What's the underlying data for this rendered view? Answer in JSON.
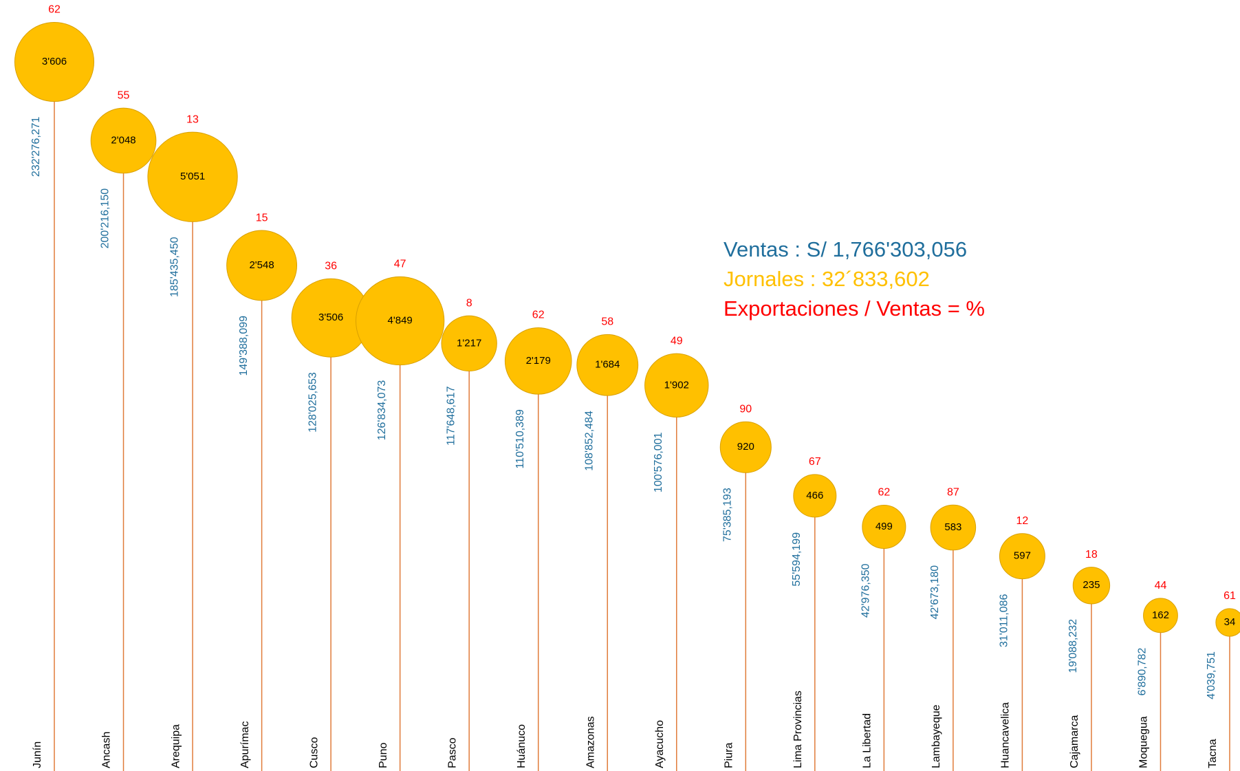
{
  "chart_data": {
    "type": "bubble",
    "categories": [
      "Junín",
      "Ancash",
      "Arequipa",
      "Apurímac",
      "Cusco",
      "Puno",
      "Pasco",
      "Huánuco",
      "Amazonas",
      "Ayacucho",
      "Piura",
      "Lima Provincias",
      "La Libertad",
      "Lambayeque",
      "Huancavelica",
      "Cajamarca",
      "Moquegua",
      "Tacna"
    ],
    "values": [
      232276271,
      200216150,
      185435450,
      149388099,
      128025653,
      126834073,
      117648617,
      110510389,
      108852484,
      100576001,
      75385193,
      55594199,
      42976350,
      42673180,
      31011086,
      19088232,
      6890782,
      4039751
    ],
    "value_labels": [
      "232'276,271",
      "200'216,150",
      "185'435,450",
      "149'388,099",
      "128'025,653",
      "126'834,073",
      "117'648,617",
      "110'510,389",
      "108'852,484",
      "100'576,001",
      "75'385,193",
      "55'594,199",
      "42'976,350",
      "42'673,180",
      "31'011,086",
      "19'088,232",
      "6'890,782",
      "4'039,751"
    ],
    "sizes": [
      3606,
      2048,
      5051,
      2548,
      3506,
      4849,
      1217,
      2179,
      1684,
      1902,
      920,
      466,
      499,
      583,
      597,
      235,
      162,
      34
    ],
    "size_labels": [
      "3'606",
      "2'048",
      "5'051",
      "2'548",
      "3'506",
      "4'849",
      "1'217",
      "2'179",
      "1'684",
      "1'902",
      "920",
      "466",
      "499",
      "583",
      "597",
      "235",
      "162",
      "34"
    ],
    "percents": [
      62,
      55,
      13,
      15,
      36,
      47,
      8,
      62,
      58,
      49,
      90,
      67,
      62,
      87,
      12,
      18,
      44,
      61
    ],
    "bubble_color": "#ffc000",
    "stem_color": "#e07b39",
    "value_label_color": "#1f6e9c",
    "percent_color": "#ff0000",
    "annotations": [
      {
        "text": "Ventas : S/ 1,766'303,056",
        "color": "#1f6e9c"
      },
      {
        "text": "Jornales :  32´833,602",
        "color": "#ffc000"
      },
      {
        "text": "Exportaciones / Ventas  =  %",
        "color": "#ff0000"
      }
    ]
  }
}
